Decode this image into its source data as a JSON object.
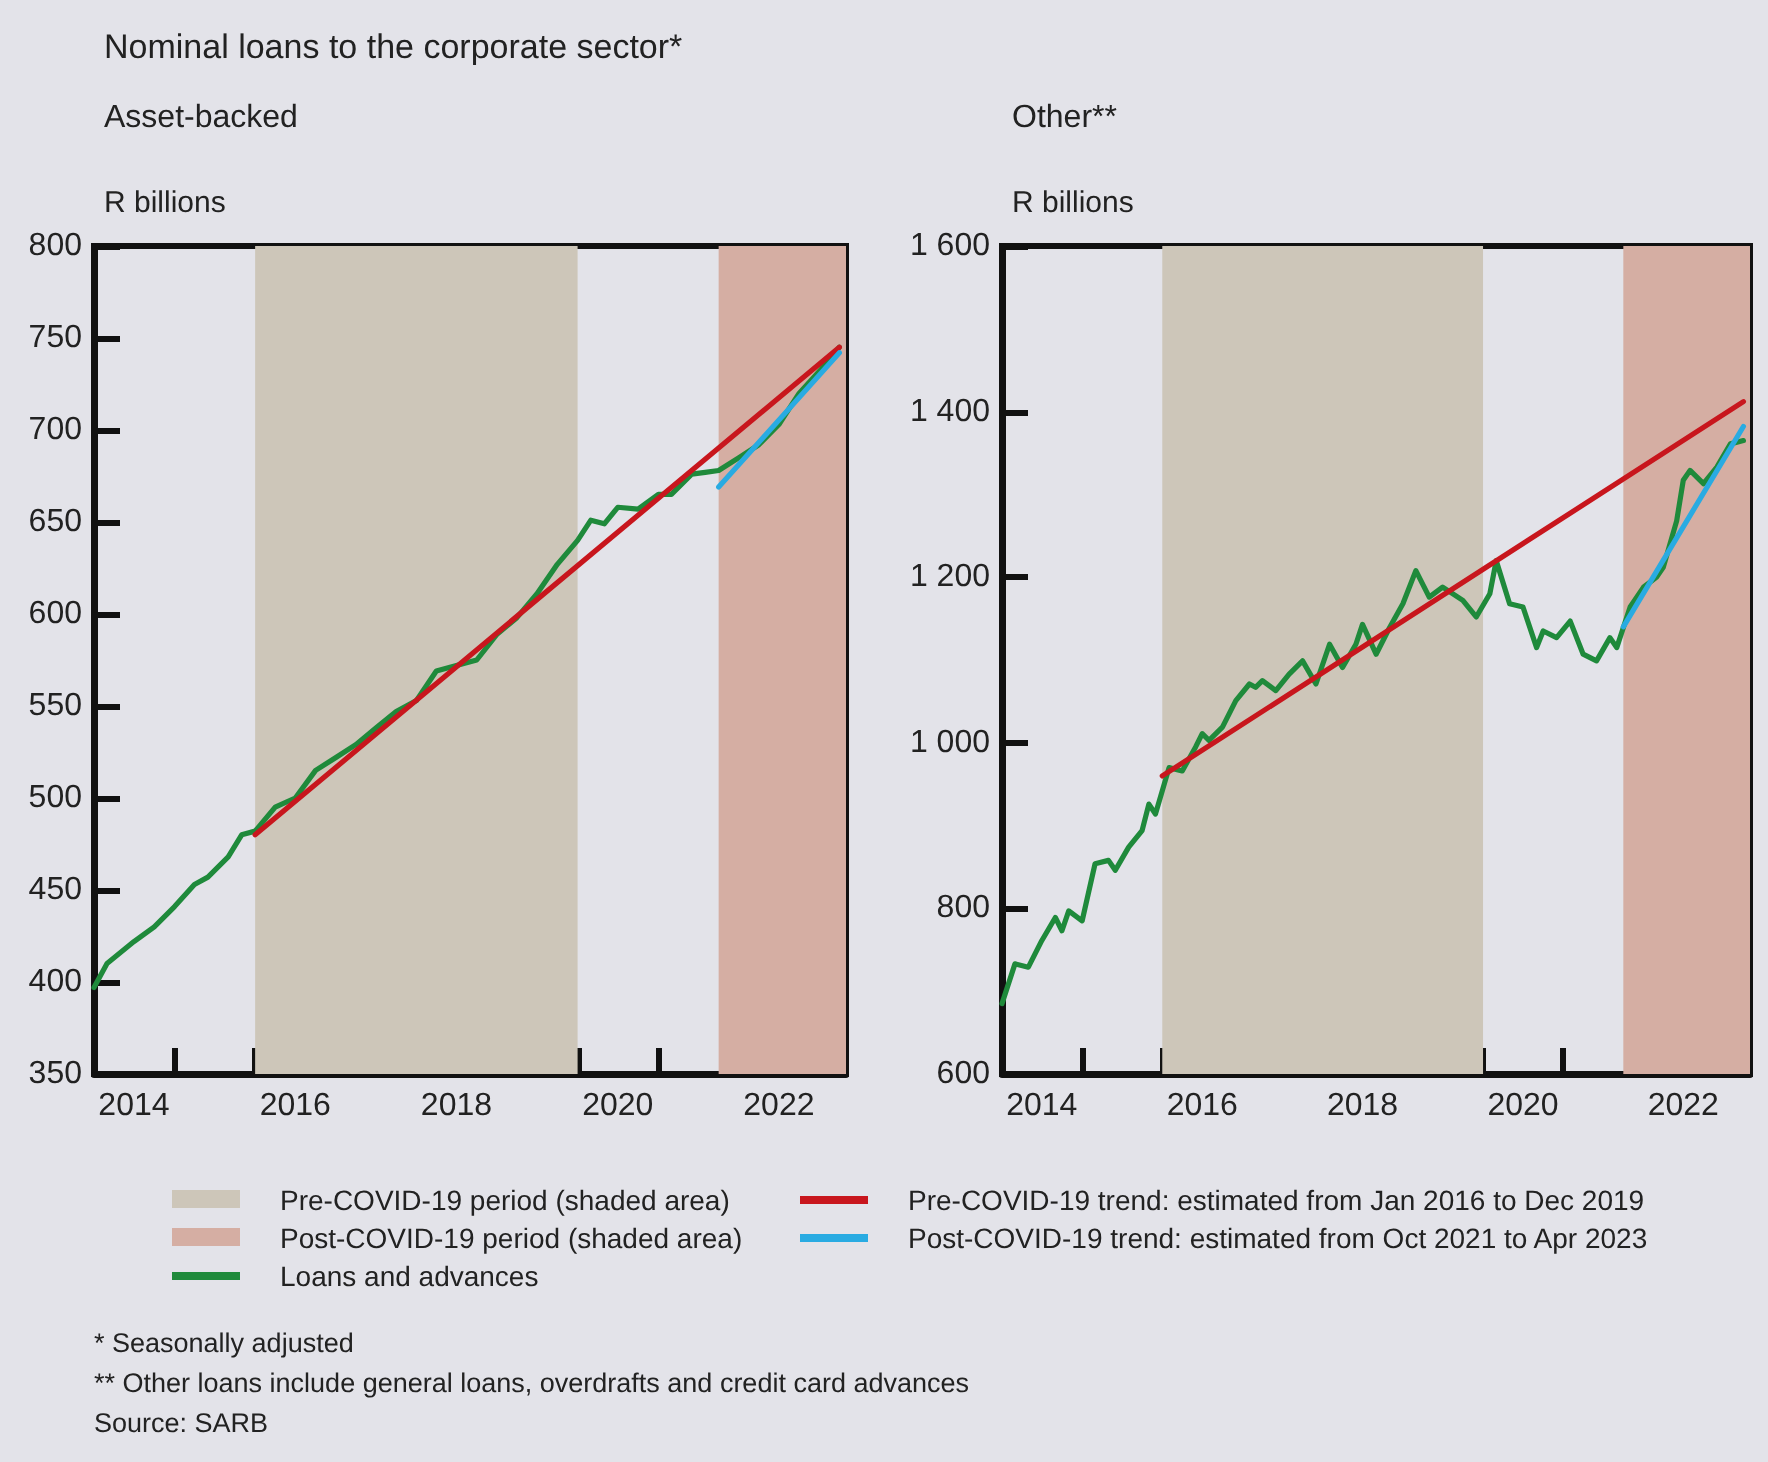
{
  "chart_data": [
    {
      "type": "line",
      "title": "Nominal loans to the corporate sector*",
      "subtitle": "Asset-backed",
      "ylabel": "R billions",
      "xlim": [
        "2014-01",
        "2023-05"
      ],
      "xticks": [
        {
          "value": "2014-07",
          "label": "2014"
        },
        {
          "value": "2015-01",
          "label": null
        },
        {
          "value": "2016-01",
          "label": null
        },
        {
          "value": "2016-07",
          "label": "2016"
        },
        {
          "value": "2017-01",
          "label": null
        },
        {
          "value": "2018-01",
          "label": null
        },
        {
          "value": "2018-07",
          "label": "2018"
        },
        {
          "value": "2019-01",
          "label": null
        },
        {
          "value": "2020-01",
          "label": null
        },
        {
          "value": "2020-07",
          "label": "2020"
        },
        {
          "value": "2021-01",
          "label": null
        },
        {
          "value": "2022-01",
          "label": null
        },
        {
          "value": "2022-07",
          "label": "2022"
        },
        {
          "value": "2023-01",
          "label": null
        }
      ],
      "ylim": [
        350,
        800
      ],
      "yticks": [
        350,
        400,
        450,
        500,
        550,
        600,
        650,
        700,
        750,
        800
      ],
      "grid": false,
      "marker": "none",
      "legend": "bottom",
      "bands": [
        {
          "axis": "x",
          "from": "2016-01",
          "to": "2020-01",
          "label": "Pre-COVID-19 period (shaded area)",
          "color": "#cdc6b9"
        },
        {
          "axis": "x",
          "from": "2021-10",
          "to": "2023-05",
          "label": "Post-COVID-19 period (shaded area)",
          "color": "#d5aea3"
        }
      ],
      "series": [
        {
          "name": "Loans and advances",
          "color": "#1f8a3b",
          "x": [
            "2014-01",
            "2014-03",
            "2014-07",
            "2014-10",
            "2015-01",
            "2015-04",
            "2015-06",
            "2015-09",
            "2015-11",
            "2016-01",
            "2016-04",
            "2016-07",
            "2016-10",
            "2017-01",
            "2017-04",
            "2017-07",
            "2017-10",
            "2018-01",
            "2018-04",
            "2018-07",
            "2018-10",
            "2019-01",
            "2019-04",
            "2019-07",
            "2019-10",
            "2020-01",
            "2020-03",
            "2020-05",
            "2020-07",
            "2020-10",
            "2021-01",
            "2021-03",
            "2021-06",
            "2021-08",
            "2021-10",
            "2022-01",
            "2022-04",
            "2022-07",
            "2022-10",
            "2023-01",
            "2023-04"
          ],
          "values": [
            397,
            410,
            422,
            430,
            441,
            453,
            457,
            468,
            480,
            482,
            495,
            500,
            515,
            522,
            529,
            538,
            547,
            553,
            569,
            572,
            575,
            589,
            598,
            611,
            627,
            640,
            651,
            649,
            658,
            657,
            665,
            665,
            676,
            677,
            678,
            685,
            692,
            703,
            720,
            732,
            745
          ]
        },
        {
          "name": "Pre-COVID-19 trend: estimated from Jan 2016 to Dec 2019",
          "color": "#c8161d",
          "x": [
            "2016-01",
            "2023-04"
          ],
          "values": [
            480,
            745
          ]
        },
        {
          "name": "Post-COVID-19 trend: estimated from Oct 2021 to Apr 2023",
          "color": "#29abe2",
          "x": [
            "2021-10",
            "2023-04"
          ],
          "values": [
            669,
            742
          ]
        }
      ],
      "annotations": [
        "* Seasonally adjusted",
        "** Other loans include general loans, overdrafts and credit card advances",
        "Source: SARB"
      ]
    },
    {
      "type": "line",
      "title": "Other**",
      "ylabel": "R billions",
      "xlim": [
        "2014-01",
        "2023-05"
      ],
      "xticks": [
        {
          "value": "2014-07",
          "label": "2014"
        },
        {
          "value": "2015-01",
          "label": null
        },
        {
          "value": "2016-01",
          "label": null
        },
        {
          "value": "2016-07",
          "label": "2016"
        },
        {
          "value": "2017-01",
          "label": null
        },
        {
          "value": "2018-01",
          "label": null
        },
        {
          "value": "2018-07",
          "label": "2018"
        },
        {
          "value": "2019-01",
          "label": null
        },
        {
          "value": "2020-01",
          "label": null
        },
        {
          "value": "2020-07",
          "label": "2020"
        },
        {
          "value": "2021-01",
          "label": null
        },
        {
          "value": "2022-01",
          "label": null
        },
        {
          "value": "2022-07",
          "label": "2022"
        },
        {
          "value": "2023-01",
          "label": null
        }
      ],
      "ylim": [
        600,
        1600
      ],
      "yticks": [
        600,
        800,
        {
          "value": 1000,
          "label": "1 000"
        },
        {
          "value": 1200,
          "label": "1 200"
        },
        {
          "value": 1400,
          "label": "1 400"
        },
        {
          "value": 1600,
          "label": "1 600"
        }
      ],
      "grid": false,
      "marker": "none",
      "bands": [
        {
          "axis": "x",
          "from": "2016-01",
          "to": "2020-01",
          "color": "#cdc6b9"
        },
        {
          "axis": "x",
          "from": "2021-10",
          "to": "2023-05",
          "color": "#d5aea3"
        }
      ],
      "series": [
        {
          "color": "#1f8a3b",
          "x": [
            "2014-01",
            "2014-03",
            "2014-05",
            "2014-07",
            "2014-09",
            "2014-10",
            "2014-11",
            "2015-01",
            "2015-03",
            "2015-05",
            "2015-06",
            "2015-08",
            "2015-10",
            "2015-11",
            "2015-12",
            "2016-02",
            "2016-04",
            "2016-06",
            "2016-07",
            "2016-08",
            "2016-10",
            "2016-12",
            "2017-02",
            "2017-03",
            "2017-04",
            "2017-06",
            "2017-08",
            "2017-10",
            "2017-12",
            "2018-02",
            "2018-04",
            "2018-06",
            "2018-07",
            "2018-09",
            "2018-11",
            "2019-01",
            "2019-03",
            "2019-05",
            "2019-07",
            "2019-10",
            "2019-12",
            "2020-02",
            "2020-03",
            "2020-05",
            "2020-07",
            "2020-09",
            "2020-10",
            "2020-12",
            "2021-02",
            "2021-04",
            "2021-06",
            "2021-08",
            "2021-09",
            "2021-11",
            "2022-01",
            "2022-03",
            "2022-04",
            "2022-06",
            "2022-07",
            "2022-08",
            "2022-10",
            "2022-12",
            "2023-02",
            "2023-04"
          ],
          "values": [
            685,
            733,
            729,
            761,
            789,
            773,
            797,
            785,
            854,
            858,
            846,
            874,
            894,
            926,
            914,
            970,
            966,
            995,
            1011,
            1003,
            1019,
            1051,
            1071,
            1067,
            1075,
            1063,
            1083,
            1099,
            1071,
            1119,
            1091,
            1119,
            1143,
            1107,
            1139,
            1168,
            1208,
            1176,
            1188,
            1172,
            1152,
            1180,
            1220,
            1168,
            1164,
            1115,
            1135,
            1127,
            1147,
            1107,
            1099,
            1127,
            1115,
            1164,
            1188,
            1200,
            1212,
            1268,
            1317,
            1329,
            1313,
            1333,
            1361,
            1365
          ]
        },
        {
          "color": "#c8161d",
          "x": [
            "2016-01",
            "2023-04"
          ],
          "values": [
            960,
            1412
          ]
        },
        {
          "color": "#29abe2",
          "x": [
            "2021-10",
            "2023-04"
          ],
          "values": [
            1140,
            1382
          ]
        }
      ]
    }
  ]
}
